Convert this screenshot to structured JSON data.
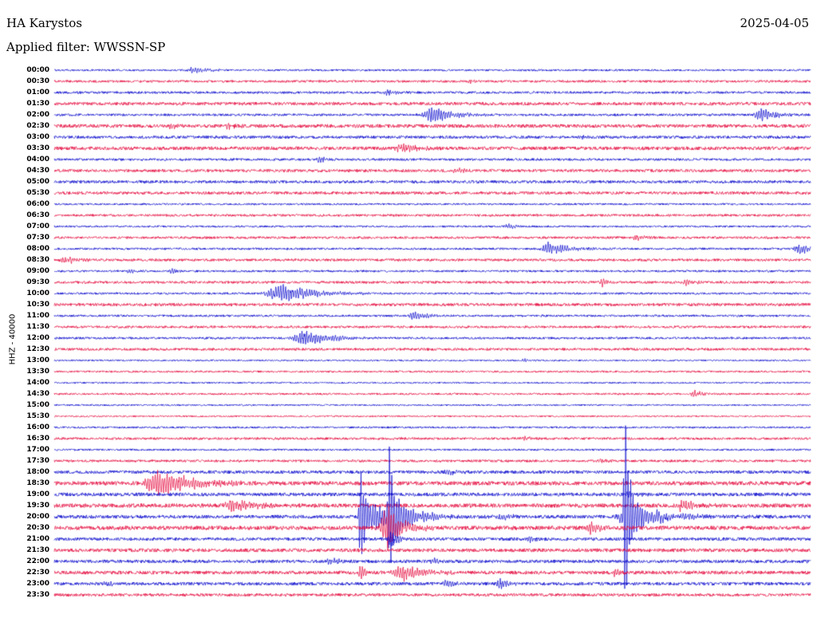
{
  "header": {
    "station_title": "HA Karystos",
    "date": "2025-04-05",
    "filter_label": "Applied filter: WWSSN-SP"
  },
  "y_axis_label": "HHZ - 40000",
  "colors": {
    "trace_blue": "#0000cc",
    "trace_red": "#e40038",
    "text": "#000000",
    "background": "#ffffff"
  },
  "chart_data": {
    "type": "line",
    "subtype": "helicorder-seismogram",
    "title": "HA Karystos",
    "date": "2025-04-05",
    "filter": "WWSSN-SP",
    "channel_scale": "HHZ - 40000",
    "minutes_per_row": 30,
    "legend": "none",
    "grid": false,
    "color_cycle": [
      "#0000cc",
      "#e40038"
    ],
    "row_labels": [
      "00:00",
      "00:30",
      "01:00",
      "01:30",
      "02:00",
      "02:30",
      "03:00",
      "03:30",
      "04:00",
      "04:30",
      "05:00",
      "05:30",
      "06:00",
      "06:30",
      "07:00",
      "07:30",
      "08:00",
      "08:30",
      "09:00",
      "09:30",
      "10:00",
      "10:30",
      "11:00",
      "11:30",
      "12:00",
      "12:30",
      "13:00",
      "13:30",
      "14:00",
      "14:30",
      "15:00",
      "15:30",
      "16:00",
      "16:30",
      "17:00",
      "17:30",
      "18:00",
      "18:30",
      "19:00",
      "19:30",
      "20:00",
      "20:30",
      "21:00",
      "21:30",
      "22:00",
      "22:30",
      "23:00",
      "23:30"
    ],
    "row_noise_amp": [
      1.2,
      1.5,
      1.5,
      2.0,
      1.5,
      2.2,
      1.8,
      2.2,
      1.5,
      1.8,
      1.8,
      1.8,
      1.2,
      1.5,
      1.2,
      1.5,
      1.3,
      1.6,
      1.3,
      1.6,
      1.3,
      1.8,
      1.3,
      1.5,
      1.4,
      1.6,
      1.0,
      1.2,
      1.0,
      1.2,
      1.0,
      1.0,
      1.2,
      1.5,
      1.2,
      1.5,
      2.0,
      2.5,
      2.2,
      2.5,
      2.2,
      2.5,
      2.0,
      2.2,
      2.0,
      2.2,
      2.0,
      1.8
    ],
    "events": [
      {
        "row": 0,
        "x": 0.185,
        "amp": 4,
        "dur": 0.02
      },
      {
        "row": 1,
        "x": 0.55,
        "amp": 2.5,
        "dur": 0.01
      },
      {
        "row": 2,
        "x": 0.44,
        "amp": 4,
        "dur": 0.012
      },
      {
        "row": 4,
        "x": 0.5,
        "amp": 9,
        "dur": 0.03
      },
      {
        "row": 4,
        "x": 0.935,
        "amp": 8,
        "dur": 0.02
      },
      {
        "row": 5,
        "x": 0.155,
        "amp": 3,
        "dur": 0.012
      },
      {
        "row": 5,
        "x": 0.23,
        "amp": 3.5,
        "dur": 0.01
      },
      {
        "row": 6,
        "x": 0.7,
        "amp": 2.5,
        "dur": 0.01
      },
      {
        "row": 7,
        "x": 0.46,
        "amp": 6,
        "dur": 0.02
      },
      {
        "row": 8,
        "x": 0.35,
        "amp": 3.5,
        "dur": 0.01
      },
      {
        "row": 9,
        "x": 0.53,
        "amp": 3,
        "dur": 0.012
      },
      {
        "row": 14,
        "x": 0.6,
        "amp": 3,
        "dur": 0.012
      },
      {
        "row": 15,
        "x": 0.77,
        "amp": 3.5,
        "dur": 0.012
      },
      {
        "row": 16,
        "x": 0.655,
        "amp": 8,
        "dur": 0.025
      },
      {
        "row": 16,
        "x": 0.985,
        "amp": 7,
        "dur": 0.015
      },
      {
        "row": 17,
        "x": 0.015,
        "amp": 4,
        "dur": 0.02
      },
      {
        "row": 18,
        "x": 0.1,
        "amp": 2.5,
        "dur": 0.01
      },
      {
        "row": 18,
        "x": 0.155,
        "amp": 2.5,
        "dur": 0.01
      },
      {
        "row": 19,
        "x": 0.725,
        "amp": 4,
        "dur": 0.01
      },
      {
        "row": 19,
        "x": 0.835,
        "amp": 4,
        "dur": 0.01
      },
      {
        "row": 20,
        "x": 0.3,
        "amp": 11,
        "dur": 0.045
      },
      {
        "row": 22,
        "x": 0.475,
        "amp": 6,
        "dur": 0.015
      },
      {
        "row": 24,
        "x": 0.33,
        "amp": 8,
        "dur": 0.04
      },
      {
        "row": 26,
        "x": 0.62,
        "amp": 2.5,
        "dur": 0.01
      },
      {
        "row": 29,
        "x": 0.845,
        "amp": 4,
        "dur": 0.012
      },
      {
        "row": 33,
        "x": 0.62,
        "amp": 3,
        "dur": 0.012
      },
      {
        "row": 35,
        "x": 0.72,
        "amp": 3,
        "dur": 0.01
      },
      {
        "row": 36,
        "x": 0.52,
        "amp": 3,
        "dur": 0.012
      },
      {
        "row": 37,
        "x": 0.14,
        "amp": 14,
        "dur": 0.05
      },
      {
        "row": 38,
        "x": 0.76,
        "amp": 3,
        "dur": 0.012
      },
      {
        "row": 39,
        "x": 0.235,
        "amp": 7,
        "dur": 0.03
      },
      {
        "row": 39,
        "x": 0.83,
        "amp": 6,
        "dur": 0.02
      },
      {
        "row": 40,
        "x": 0.405,
        "amp": 70,
        "dur": 0.006
      },
      {
        "row": 40,
        "x": 0.425,
        "amp": 14,
        "dur": 0.03
      },
      {
        "row": 40,
        "x": 0.443,
        "amp": 75,
        "dur": 0.006
      },
      {
        "row": 40,
        "x": 0.458,
        "amp": 12,
        "dur": 0.03
      },
      {
        "row": 40,
        "x": 0.59,
        "amp": 4,
        "dur": 0.015
      },
      {
        "row": 40,
        "x": 0.755,
        "amp": 122,
        "dur": 0.005
      },
      {
        "row": 40,
        "x": 0.765,
        "amp": 16,
        "dur": 0.045
      },
      {
        "row": 41,
        "x": 0.44,
        "amp": 26,
        "dur": 0.022
      },
      {
        "row": 41,
        "x": 0.71,
        "amp": 7,
        "dur": 0.015
      },
      {
        "row": 42,
        "x": 0.445,
        "amp": 10,
        "dur": 0.01
      },
      {
        "row": 42,
        "x": 0.63,
        "amp": 3,
        "dur": 0.01
      },
      {
        "row": 44,
        "x": 0.365,
        "amp": 5,
        "dur": 0.012
      },
      {
        "row": 44,
        "x": 0.5,
        "amp": 3.5,
        "dur": 0.012
      },
      {
        "row": 45,
        "x": 0.405,
        "amp": 9,
        "dur": 0.008
      },
      {
        "row": 45,
        "x": 0.46,
        "amp": 9,
        "dur": 0.03
      },
      {
        "row": 45,
        "x": 0.74,
        "amp": 3.5,
        "dur": 0.01
      },
      {
        "row": 46,
        "x": 0.07,
        "amp": 3.5,
        "dur": 0.01
      },
      {
        "row": 46,
        "x": 0.52,
        "amp": 4.5,
        "dur": 0.015
      },
      {
        "row": 46,
        "x": 0.59,
        "amp": 4.5,
        "dur": 0.015
      }
    ]
  }
}
